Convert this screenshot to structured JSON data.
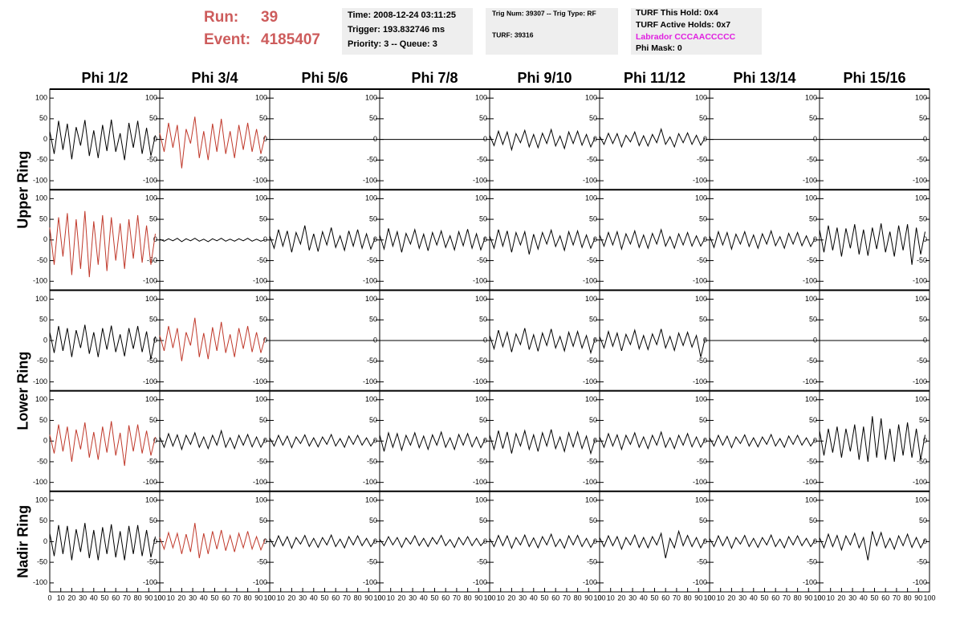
{
  "header": {
    "run_label": "Run:",
    "run": "39",
    "event_label": "Event:",
    "event": "4185407",
    "box1": [
      "Time: 2008-12-24 03:11:25",
      "Trigger: 193.832746 ms",
      "Priority: 3 -- Queue: 3"
    ],
    "box2": [
      "Trig Num: 39307 -- Trig Type: RF",
      "TURF: 39316"
    ],
    "box3": [
      "TURF This Hold: 0x4",
      "TURF Active Holds: 0x7",
      "Labrador CCCAACCCCC",
      "Phi Mask: 0"
    ]
  },
  "chart_data": {
    "type": "line",
    "columns": [
      "Phi 1/2",
      "Phi 3/4",
      "Phi 5/6",
      "Phi 7/8",
      "Phi 9/10",
      "Phi 11/12",
      "Phi 13/14",
      "Phi 15/16"
    ],
    "rings": [
      "Upper Ring",
      "Lower Ring",
      "Nadir Ring"
    ],
    "xlim": [
      0,
      100
    ],
    "xticks": [
      0,
      10,
      20,
      30,
      40,
      50,
      60,
      70,
      80,
      90,
      100
    ],
    "ylim": [
      -110,
      110
    ],
    "yticks": [
      -100,
      -50,
      0,
      50,
      100
    ],
    "x": [
      0,
      4,
      8,
      12,
      16,
      20,
      24,
      28,
      32,
      36,
      40,
      44,
      48,
      52,
      56,
      60,
      64,
      68,
      72,
      76,
      80,
      84,
      88,
      92,
      96
    ],
    "series": [
      {
        "color": "#000000",
        "values": [
          20,
          -35,
          45,
          -25,
          38,
          -48,
          30,
          -15,
          47,
          -40,
          22,
          -45,
          35,
          -28,
          48,
          -30,
          15,
          -50,
          40,
          -20,
          45,
          -35,
          28,
          -40,
          10
        ]
      },
      {
        "color": "#c0392b",
        "values": [
          15,
          -30,
          40,
          -20,
          35,
          -70,
          25,
          -10,
          55,
          -45,
          20,
          -50,
          38,
          -30,
          50,
          -35,
          20,
          -45,
          35,
          -25,
          40,
          -30,
          25,
          -35,
          10
        ]
      },
      {
        "color": "#000000",
        "values": [
          0,
          0,
          0,
          0,
          0,
          0,
          0,
          0,
          0,
          0,
          0,
          0,
          0,
          0,
          0,
          0,
          0,
          0,
          0,
          0,
          0,
          0,
          0,
          0,
          0
        ]
      },
      {
        "color": "#000000",
        "values": [
          0,
          0,
          0,
          0,
          0,
          0,
          0,
          0,
          0,
          0,
          0,
          0,
          0,
          0,
          0,
          0,
          0,
          0,
          0,
          0,
          0,
          0,
          0,
          0,
          0
        ]
      },
      {
        "color": "#000000",
        "values": [
          10,
          -15,
          20,
          -12,
          18,
          -25,
          14,
          -8,
          22,
          -18,
          12,
          -20,
          15,
          -10,
          24,
          -16,
          8,
          -22,
          18,
          -10,
          20,
          -14,
          12,
          -18,
          5
        ]
      },
      {
        "color": "#000000",
        "values": [
          8,
          -12,
          15,
          -10,
          14,
          -18,
          10,
          -6,
          18,
          -15,
          9,
          -16,
          12,
          -8,
          25,
          -12,
          6,
          -18,
          14,
          -8,
          16,
          -12,
          10,
          -14,
          4
        ]
      },
      {
        "color": "#000000",
        "values": [
          0,
          0,
          0,
          0,
          0,
          0,
          0,
          0,
          0,
          0,
          0,
          0,
          0,
          0,
          0,
          0,
          0,
          0,
          0,
          0,
          0,
          0,
          0,
          0,
          0
        ]
      },
      {
        "color": "#000000",
        "values": [
          0,
          0,
          0,
          0,
          0,
          0,
          0,
          0,
          0,
          0,
          0,
          0,
          0,
          0,
          0,
          0,
          0,
          0,
          0,
          0,
          0,
          0,
          0,
          0,
          0
        ]
      },
      {
        "color": "#c0392b",
        "values": [
          30,
          -60,
          55,
          -40,
          65,
          -85,
          50,
          -70,
          70,
          -90,
          45,
          -60,
          60,
          -75,
          55,
          -50,
          40,
          -70,
          50,
          -45,
          60,
          -55,
          35,
          -60,
          15
        ]
      },
      {
        "color": "#000000",
        "values": [
          2,
          -3,
          3,
          -2,
          4,
          -4,
          3,
          -2,
          4,
          -3,
          2,
          -4,
          3,
          -2,
          4,
          -3,
          2,
          -3,
          3,
          -2,
          4,
          -3,
          2,
          -3,
          1
        ]
      },
      {
        "color": "#000000",
        "values": [
          10,
          -20,
          25,
          -15,
          22,
          -30,
          18,
          -10,
          35,
          -25,
          15,
          -28,
          20,
          -12,
          30,
          -18,
          10,
          -25,
          22,
          -15,
          25,
          -20,
          15,
          -22,
          5
        ]
      },
      {
        "color": "#000000",
        "values": [
          12,
          -22,
          28,
          -15,
          20,
          -30,
          16,
          -10,
          25,
          -20,
          14,
          -26,
          18,
          -12,
          22,
          -18,
          10,
          -24,
          20,
          -14,
          26,
          -20,
          15,
          -24,
          6
        ]
      },
      {
        "color": "#000000",
        "values": [
          10,
          -20,
          25,
          -15,
          22,
          -30,
          18,
          -12,
          20,
          -35,
          14,
          -22,
          18,
          -10,
          24,
          -16,
          10,
          -25,
          20,
          -12,
          22,
          -18,
          12,
          -20,
          5
        ]
      },
      {
        "color": "#000000",
        "values": [
          12,
          -15,
          18,
          -12,
          20,
          -22,
          15,
          -10,
          22,
          -18,
          12,
          -20,
          16,
          -10,
          25,
          -15,
          8,
          -20,
          15,
          -12,
          18,
          -15,
          10,
          -15,
          5
        ]
      },
      {
        "color": "#000000",
        "values": [
          10,
          -18,
          20,
          -12,
          18,
          -22,
          14,
          -10,
          20,
          -16,
          12,
          -20,
          15,
          -10,
          22,
          -14,
          8,
          -20,
          16,
          -10,
          18,
          -14,
          10,
          -16,
          4
        ]
      },
      {
        "color": "#000000",
        "values": [
          25,
          -30,
          35,
          -25,
          30,
          -40,
          28,
          -20,
          38,
          -35,
          25,
          -38,
          30,
          -22,
          40,
          -30,
          20,
          -40,
          35,
          -25,
          38,
          -60,
          30,
          -35,
          20
        ]
      },
      {
        "color": "#000000",
        "values": [
          20,
          -30,
          35,
          -25,
          30,
          -40,
          25,
          -18,
          38,
          -32,
          20,
          -40,
          30,
          -22,
          36,
          -28,
          15,
          -38,
          30,
          -20,
          35,
          -28,
          22,
          -45,
          10
        ]
      },
      {
        "color": "#c0392b",
        "values": [
          12,
          -25,
          35,
          -18,
          30,
          -50,
          20,
          -12,
          55,
          -40,
          18,
          -45,
          32,
          -25,
          45,
          -30,
          15,
          -40,
          30,
          -20,
          35,
          -28,
          20,
          -30,
          8
        ]
      },
      {
        "color": "#000000",
        "values": [
          0,
          0,
          0,
          0,
          0,
          0,
          0,
          0,
          0,
          0,
          0,
          0,
          0,
          0,
          0,
          0,
          0,
          0,
          0,
          0,
          0,
          0,
          0,
          0,
          0
        ]
      },
      {
        "color": "#000000",
        "values": [
          0,
          0,
          0,
          0,
          0,
          0,
          0,
          0,
          0,
          0,
          0,
          0,
          0,
          0,
          0,
          0,
          0,
          0,
          0,
          0,
          0,
          0,
          0,
          0,
          0
        ]
      },
      {
        "color": "#000000",
        "values": [
          12,
          -20,
          25,
          -15,
          20,
          -28,
          16,
          -10,
          30,
          -22,
          14,
          -26,
          18,
          -12,
          28,
          -18,
          10,
          -25,
          20,
          -14,
          22,
          -18,
          12,
          -30,
          5
        ]
      },
      {
        "color": "#000000",
        "values": [
          10,
          -18,
          22,
          -14,
          18,
          -25,
          15,
          -10,
          25,
          -20,
          12,
          -22,
          16,
          -10,
          28,
          -18,
          10,
          -24,
          18,
          -12,
          20,
          -16,
          12,
          -40,
          5
        ]
      },
      {
        "color": "#000000",
        "values": [
          0,
          0,
          0,
          0,
          0,
          0,
          0,
          0,
          0,
          0,
          0,
          0,
          0,
          0,
          0,
          0,
          0,
          0,
          0,
          0,
          0,
          0,
          0,
          0,
          0
        ]
      },
      {
        "color": "#000000",
        "values": [
          0,
          0,
          0,
          0,
          0,
          0,
          0,
          0,
          0,
          0,
          0,
          0,
          0,
          0,
          0,
          0,
          0,
          0,
          0,
          0,
          0,
          0,
          0,
          0,
          0
        ]
      },
      {
        "color": "#c0392b",
        "values": [
          15,
          -30,
          40,
          -25,
          35,
          -50,
          28,
          -20,
          45,
          -40,
          22,
          -45,
          35,
          -28,
          48,
          -35,
          20,
          -60,
          38,
          -25,
          40,
          -30,
          25,
          -35,
          10
        ]
      },
      {
        "color": "#000000",
        "values": [
          10,
          -15,
          18,
          -12,
          15,
          -20,
          14,
          -8,
          20,
          -15,
          10,
          -18,
          14,
          -10,
          25,
          -15,
          8,
          -18,
          14,
          -10,
          16,
          -14,
          10,
          -15,
          5
        ]
      },
      {
        "color": "#000000",
        "values": [
          8,
          -12,
          14,
          -10,
          12,
          -16,
          10,
          -6,
          15,
          -12,
          8,
          -14,
          10,
          -8,
          16,
          -12,
          6,
          -15,
          12,
          -8,
          14,
          -10,
          8,
          -12,
          4
        ]
      },
      {
        "color": "#000000",
        "values": [
          15,
          -25,
          20,
          -15,
          18,
          -22,
          14,
          -10,
          20,
          -16,
          12,
          -20,
          15,
          -10,
          22,
          -15,
          8,
          -20,
          16,
          -10,
          18,
          -14,
          10,
          -16,
          5
        ]
      },
      {
        "color": "#000000",
        "values": [
          15,
          -20,
          25,
          -18,
          22,
          -30,
          18,
          -12,
          25,
          -20,
          15,
          -25,
          20,
          -12,
          28,
          -18,
          10,
          -25,
          20,
          -14,
          22,
          -18,
          12,
          -30,
          5
        ]
      },
      {
        "color": "#000000",
        "values": [
          10,
          -15,
          18,
          -12,
          15,
          -20,
          14,
          -8,
          20,
          -15,
          10,
          -18,
          14,
          -10,
          22,
          -15,
          8,
          -18,
          14,
          -10,
          18,
          -14,
          10,
          -15,
          5
        ]
      },
      {
        "color": "#000000",
        "values": [
          8,
          -12,
          14,
          -10,
          12,
          -16,
          10,
          -6,
          15,
          -12,
          8,
          -14,
          10,
          -8,
          16,
          -12,
          6,
          -15,
          12,
          -8,
          14,
          -10,
          8,
          -12,
          4
        ]
      },
      {
        "color": "#000000",
        "values": [
          25,
          -35,
          30,
          -28,
          35,
          -40,
          30,
          -25,
          40,
          -45,
          35,
          -50,
          60,
          -40,
          55,
          -45,
          30,
          -50,
          40,
          -35,
          45,
          -40,
          30,
          -45,
          15
        ]
      },
      {
        "color": "#000000",
        "values": [
          20,
          -35,
          40,
          -30,
          38,
          -45,
          30,
          -25,
          45,
          -40,
          28,
          -45,
          35,
          -30,
          42,
          -38,
          25,
          -45,
          38,
          -30,
          40,
          -35,
          28,
          -38,
          12
        ]
      },
      {
        "color": "#c0392b",
        "values": [
          10,
          -18,
          22,
          -15,
          20,
          -30,
          18,
          -25,
          45,
          -40,
          20,
          -30,
          25,
          -18,
          28,
          -22,
          15,
          -25,
          20,
          -15,
          25,
          -18,
          12,
          -20,
          6
        ]
      },
      {
        "color": "#000000",
        "values": [
          8,
          -12,
          14,
          -10,
          12,
          -16,
          10,
          -6,
          15,
          -12,
          8,
          -14,
          10,
          -8,
          16,
          -12,
          6,
          -15,
          12,
          -8,
          14,
          -10,
          8,
          -12,
          4
        ]
      },
      {
        "color": "#000000",
        "values": [
          6,
          -10,
          12,
          -8,
          10,
          -14,
          9,
          -6,
          14,
          -10,
          8,
          -12,
          10,
          -6,
          15,
          -10,
          5,
          -14,
          10,
          -8,
          12,
          -10,
          8,
          -10,
          3
        ]
      },
      {
        "color": "#000000",
        "values": [
          8,
          -12,
          15,
          -10,
          14,
          -16,
          10,
          -8,
          16,
          -12,
          9,
          -15,
          12,
          -8,
          18,
          -12,
          6,
          -16,
          14,
          -8,
          15,
          -12,
          8,
          -14,
          4
        ]
      },
      {
        "color": "#000000",
        "values": [
          10,
          -12,
          14,
          -10,
          12,
          -18,
          10,
          -8,
          16,
          -14,
          10,
          -15,
          12,
          -8,
          20,
          -40,
          8,
          -15,
          25,
          -10,
          15,
          -12,
          10,
          -15,
          5
        ]
      },
      {
        "color": "#000000",
        "values": [
          8,
          -12,
          14,
          -10,
          12,
          -16,
          10,
          -6,
          15,
          -12,
          8,
          -14,
          10,
          -8,
          16,
          -12,
          6,
          -15,
          12,
          -8,
          14,
          -10,
          8,
          -12,
          4
        ]
      },
      {
        "color": "#000000",
        "values": [
          10,
          -15,
          18,
          -12,
          15,
          -20,
          14,
          -8,
          20,
          -15,
          10,
          -45,
          25,
          -10,
          22,
          -15,
          8,
          -18,
          14,
          -10,
          18,
          -14,
          10,
          -15,
          5
        ]
      }
    ]
  }
}
